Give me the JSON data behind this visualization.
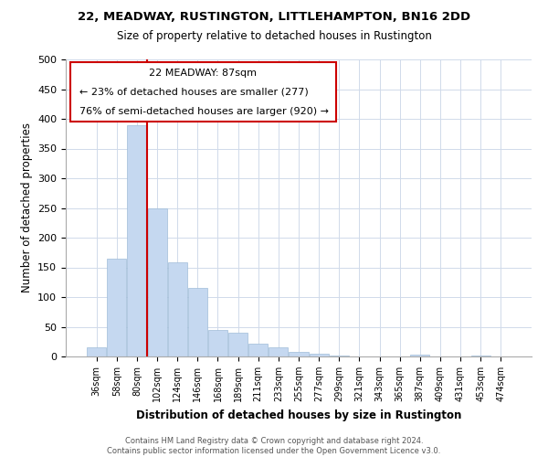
{
  "title": "22, MEADWAY, RUSTINGTON, LITTLEHAMPTON, BN16 2DD",
  "subtitle": "Size of property relative to detached houses in Rustington",
  "xlabel": "Distribution of detached houses by size in Rustington",
  "ylabel": "Number of detached properties",
  "bar_labels": [
    "36sqm",
    "58sqm",
    "80sqm",
    "102sqm",
    "124sqm",
    "146sqm",
    "168sqm",
    "189sqm",
    "211sqm",
    "233sqm",
    "255sqm",
    "277sqm",
    "299sqm",
    "321sqm",
    "343sqm",
    "365sqm",
    "387sqm",
    "409sqm",
    "431sqm",
    "453sqm",
    "474sqm"
  ],
  "bar_values": [
    15,
    165,
    390,
    250,
    158,
    115,
    45,
    40,
    22,
    16,
    8,
    4,
    2,
    0,
    0,
    0,
    3,
    0,
    0,
    2,
    0
  ],
  "bar_color": "#c5d8f0",
  "bar_edge_color": "#a0bcd8",
  "vline_x_index": 2,
  "vline_color": "#cc0000",
  "ylim": [
    0,
    500
  ],
  "yticks": [
    0,
    50,
    100,
    150,
    200,
    250,
    300,
    350,
    400,
    450,
    500
  ],
  "annotation_title": "22 MEADWAY: 87sqm",
  "annotation_line1": "← 23% of detached houses are smaller (277)",
  "annotation_line2": "76% of semi-detached houses are larger (920) →",
  "annotation_box_color": "#ffffff",
  "annotation_box_edge": "#cc0000",
  "footer_line1": "Contains HM Land Registry data © Crown copyright and database right 2024.",
  "footer_line2": "Contains public sector information licensed under the Open Government Licence v3.0.",
  "background_color": "#ffffff",
  "grid_color": "#d0daea"
}
